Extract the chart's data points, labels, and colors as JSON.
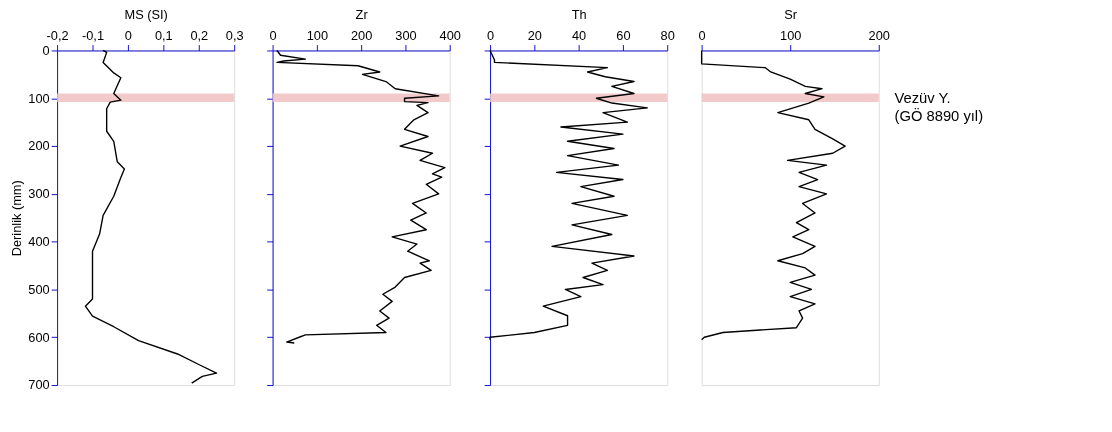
{
  "chart_data": [
    {
      "type": "line",
      "orientation": "horizontal",
      "xlabel": "MS (SI)",
      "ylabel": "Derinlik (mm)",
      "xlim": [
        -0.2,
        0.3
      ],
      "xticks": [
        {
          "value": -0.2,
          "label": "-0,2"
        },
        {
          "value": -0.1,
          "label": "-0,1"
        },
        0,
        {
          "value": 0.1,
          "label": "0,1"
        },
        {
          "value": 0.2,
          "label": "0,2"
        },
        {
          "value": 0.3,
          "label": "0,3"
        }
      ],
      "ylim": [
        700,
        0
      ],
      "yticks": [
        0,
        100,
        200,
        300,
        400,
        500,
        600,
        700
      ],
      "grid": false,
      "bands": [
        {
          "axis": "y",
          "from": 90,
          "to": 108,
          "color": "#f2c4c4"
        }
      ],
      "series": [
        {
          "color": "#000000",
          "x": [
            0,
            4,
            25,
            47,
            57,
            90,
            104,
            108,
            122,
            169,
            190,
            233,
            248,
            266,
            305,
            345,
            384,
            420,
            463,
            520,
            535,
            556,
            578,
            607,
            635,
            657,
            675,
            682,
            696
          ],
          "values": [
            -0.07,
            -0.06,
            -0.07,
            -0.04,
            -0.02,
            -0.04,
            -0.02,
            -0.05,
            -0.06,
            -0.06,
            -0.04,
            -0.03,
            -0.01,
            -0.02,
            -0.04,
            -0.07,
            -0.08,
            -0.1,
            -0.1,
            -0.1,
            -0.12,
            -0.1,
            -0.04,
            0.03,
            0.14,
            0.2,
            0.25,
            0.21,
            0.18
          ]
        }
      ]
    },
    {
      "type": "line",
      "orientation": "horizontal",
      "xlabel": "Zr",
      "tick_labels": "x",
      "xlim": [
        0,
        400
      ],
      "xticks": [
        0,
        100,
        200,
        300,
        400
      ],
      "ylim": [
        700,
        0
      ],
      "yticks": [
        0,
        100,
        200,
        300,
        400,
        500,
        600,
        700
      ],
      "grid": false,
      "bands": [
        {
          "axis": "y",
          "from": 90,
          "to": 108,
          "color": "#f2c4c4"
        }
      ],
      "series": [
        {
          "color": "#000000",
          "x": [
            0,
            10,
            18,
            22,
            25,
            32,
            45,
            50,
            65,
            80,
            95,
            100,
            107,
            109,
            115,
            130,
            145,
            165,
            180,
            200,
            215,
            230,
            245,
            258,
            265,
            280,
            300,
            320,
            340,
            355,
            375,
            390,
            405,
            420,
            440,
            445,
            460,
            475,
            495,
            510,
            525,
            545,
            560,
            575,
            590,
            595,
            600,
            610,
            612
          ],
          "values": [
            10,
            18,
            74,
            25,
            10,
            193,
            242,
            203,
            256,
            277,
            375,
            298,
            298,
            351,
            326,
            351,
            319,
            298,
            351,
            288,
            361,
            333,
            389,
            361,
            382,
            347,
            375,
            316,
            347,
            312,
            347,
            270,
            326,
            305,
            354,
            333,
            358,
            298,
            277,
            249,
            270,
            242,
            263,
            235,
            256,
            74,
            60,
            32,
            49
          ]
        }
      ]
    },
    {
      "type": "line",
      "orientation": "horizontal",
      "xlabel": "Th",
      "tick_labels": "x",
      "xlim": [
        0,
        80
      ],
      "xticks": [
        0,
        20,
        40,
        60,
        80
      ],
      "ylim": [
        700,
        0
      ],
      "yticks": [
        0,
        100,
        200,
        300,
        400,
        500,
        600,
        700
      ],
      "grid": false,
      "bands": [
        {
          "axis": "y",
          "from": 90,
          "to": 108,
          "color": "#f2c4c4"
        }
      ],
      "series": [
        {
          "color": "#000000",
          "x": [
            0,
            20,
            25,
            36,
            45,
            55,
            65,
            75,
            90,
            100,
            110,
            120,
            130,
            150,
            160,
            175,
            190,
            205,
            220,
            240,
            255,
            270,
            285,
            305,
            320,
            345,
            365,
            385,
            410,
            430,
            445,
            460,
            475,
            490,
            500,
            515,
            535,
            555,
            575,
            590,
            600,
            605
          ],
          "values": [
            0,
            2,
            2,
            53,
            44,
            52,
            65,
            55,
            65,
            48,
            55,
            71,
            51,
            62,
            32,
            60,
            35,
            56,
            35,
            58,
            30,
            60,
            41,
            56,
            37,
            62,
            37,
            55,
            28,
            65,
            46,
            53,
            42,
            51,
            34,
            41,
            24,
            35,
            35,
            20,
            0,
            0
          ]
        }
      ]
    },
    {
      "type": "line",
      "orientation": "horizontal",
      "xlabel": "Sr",
      "tick_labels": "x",
      "xlim": [
        0,
        200
      ],
      "xticks": [
        0,
        100,
        200
      ],
      "ylim": [
        700,
        0
      ],
      "yticks": [
        0,
        100,
        200,
        300,
        400,
        500,
        600,
        700
      ],
      "grid": false,
      "bands": [
        {
          "axis": "y",
          "from": 90,
          "to": 108,
          "color": "#f2c4c4",
          "label": "Vezüv Y.\n(GÖ 8890 yıl)"
        }
      ],
      "series": [
        {
          "color": "#000000",
          "x": [
            0,
            28,
            36,
            45,
            60,
            75,
            80,
            90,
            97,
            110,
            130,
            145,
            165,
            185,
            200,
            215,
            230,
            240,
            255,
            270,
            285,
            300,
            320,
            340,
            360,
            375,
            390,
            410,
            425,
            440,
            455,
            470,
            485,
            500,
            515,
            530,
            545,
            560,
            580,
            590,
            600,
            605
          ],
          "values": [
            0,
            0,
            72,
            78,
            100,
            117,
            136,
            117,
            138,
            121,
            86,
            121,
            128,
            148,
            162,
            148,
            97,
            141,
            110,
            131,
            110,
            141,
            114,
            128,
            107,
            121,
            103,
            128,
            114,
            86,
            117,
            128,
            100,
            124,
            100,
            128,
            110,
            114,
            107,
            24,
            3,
            0
          ]
        }
      ]
    }
  ]
}
